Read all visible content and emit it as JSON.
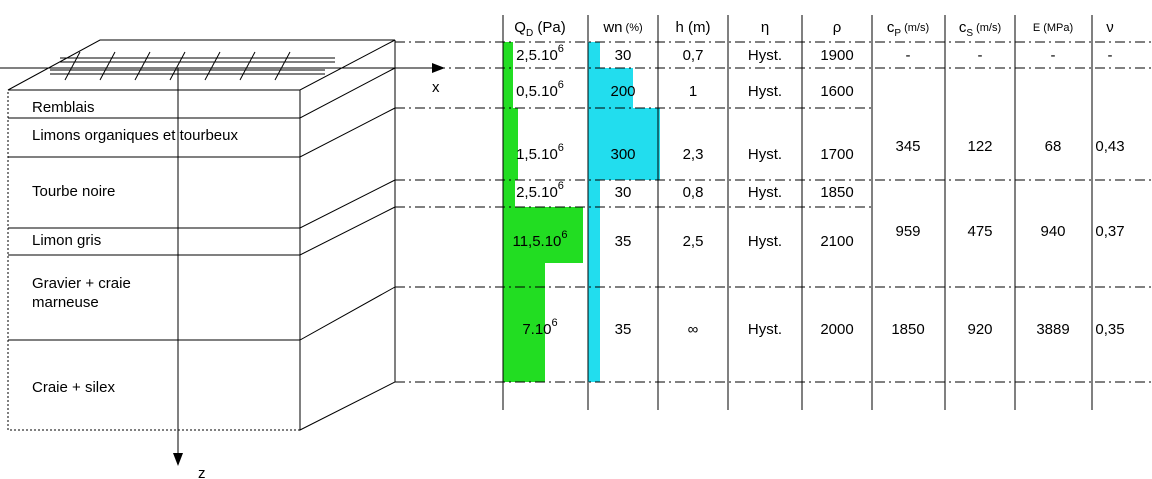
{
  "axes": {
    "x": "x",
    "z": "z"
  },
  "layers": [
    [
      "Remblais"
    ],
    [
      "Limons organiques et tourbeux"
    ],
    [
      "Tourbe noire"
    ],
    [
      "Limon gris"
    ],
    [
      "Gravier + craie",
      "marneuse"
    ],
    [
      "Craie + silex"
    ]
  ],
  "table": {
    "headers": [
      [
        {
          "t": "Q"
        },
        {
          "t": "D",
          "sub": true
        },
        {
          "t": " (Pa)"
        }
      ],
      [
        {
          "t": "wn"
        },
        {
          "t": " (%)",
          "small": true
        }
      ],
      [
        {
          "t": "h (m)"
        }
      ],
      [
        {
          "t": "η"
        }
      ],
      [
        {
          "t": "ρ"
        }
      ],
      [
        {
          "t": "c"
        },
        {
          "t": "P",
          "sub": true
        },
        {
          "t": " (m/s)",
          "small": true
        }
      ],
      [
        {
          "t": "c"
        },
        {
          "t": "S",
          "sub": true
        },
        {
          "t": " (m/s)",
          "small": true
        }
      ],
      [
        {
          "t": "E (MPa)",
          "small": true
        }
      ],
      [
        {
          "t": "ν"
        }
      ]
    ],
    "rows": [
      {
        "qd": {
          "m": "2,5.10",
          "e": "6"
        },
        "wn": "30",
        "h": "0,7",
        "eta": "Hyst.",
        "rho": "1900"
      },
      {
        "qd": {
          "m": "0,5.10",
          "e": "6"
        },
        "wn": "200",
        "h": "1",
        "eta": "Hyst.",
        "rho": "1600"
      },
      {
        "qd": {
          "m": "1,5.10",
          "e": "6"
        },
        "wn": "300",
        "h": "2,3",
        "eta": "Hyst.",
        "rho": "1700"
      },
      {
        "qd": {
          "m": "2,5.10",
          "e": "6"
        },
        "wn": "30",
        "h": "0,8",
        "eta": "Hyst.",
        "rho": "1850"
      },
      {
        "qd": {
          "m": "11,5.10",
          "e": "6"
        },
        "wn": "35",
        "h": "2,5",
        "eta": "Hyst.",
        "rho": "2100"
      },
      {
        "qd": {
          "m": "7.10",
          "e": "6"
        },
        "wn": "35",
        "h": "∞",
        "eta": "Hyst.",
        "rho": "2000"
      }
    ],
    "elastic": [
      [
        "-",
        "-",
        "-",
        "-"
      ],
      [
        "345",
        "122",
        "68",
        "0,43"
      ],
      [
        "959",
        "475",
        "940",
        "0,37"
      ],
      [
        "1850",
        "920",
        "3889",
        "0,35"
      ]
    ]
  }
}
